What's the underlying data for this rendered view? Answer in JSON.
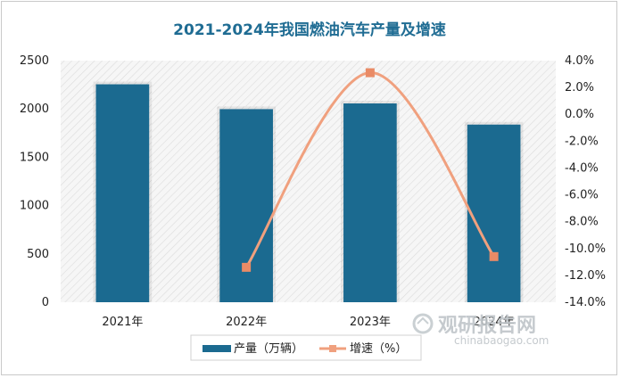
{
  "chart_data": {
    "type": "bar+line",
    "title": "2021-2024年我国燃油汽车产量及增速",
    "categories": [
      "2021年",
      "2022年",
      "2023年",
      "2024年"
    ],
    "series": [
      {
        "name": "产量（万辆）",
        "type": "bar",
        "axis": "left",
        "color": "#1b6a90",
        "values": [
          2255,
          1998,
          2057,
          1838
        ]
      },
      {
        "name": "增速（%）",
        "type": "line",
        "axis": "right",
        "color": "#f0a07e",
        "values": [
          null,
          -11.4,
          3.1,
          -10.6
        ]
      }
    ],
    "y_left": {
      "min": 0,
      "max": 2500,
      "ticks": [
        "0",
        "500",
        "1000",
        "1500",
        "2000",
        "2500"
      ]
    },
    "y_right": {
      "min": -14,
      "max": 4,
      "ticks": [
        "-14.0%",
        "-12.0%",
        "-10.0%",
        "-8.0%",
        "-6.0%",
        "-4.0%",
        "-2.0%",
        "0.0%",
        "2.0%",
        "4.0%"
      ]
    },
    "legend_position": "bottom",
    "grid": false
  },
  "watermark": {
    "name": "观研报告网",
    "url": "chinabaogao.com"
  }
}
